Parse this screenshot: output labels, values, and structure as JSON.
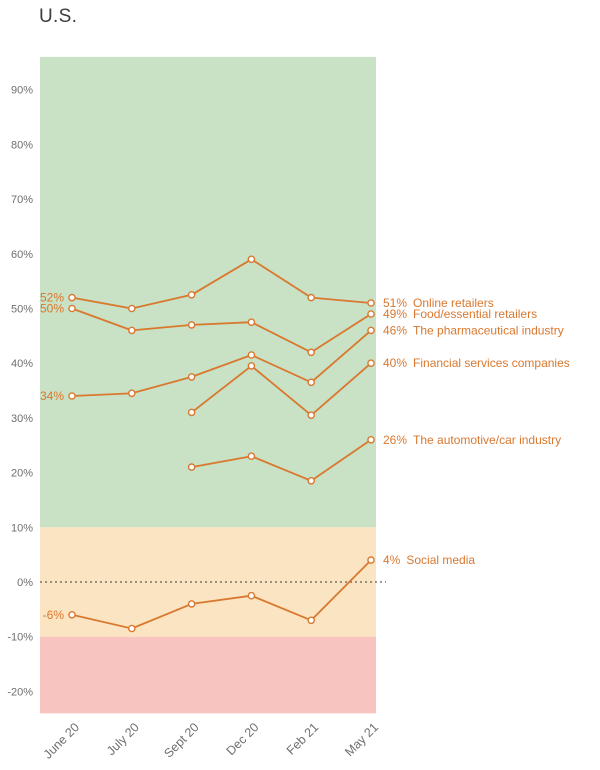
{
  "title": "U.S.",
  "colors": {
    "line": "#d9782f",
    "marker_fill": "#ffffff",
    "band_positive": "#c9e1c4",
    "band_neutral": "#fbe4c1",
    "band_negative": "#f7c4c0",
    "axis_text": "#6f6f6f",
    "title_text": "#3d3d3d",
    "zero_line": "#3a3a3a"
  },
  "chart_data": {
    "type": "line",
    "title": "U.S.",
    "x": [
      "June 20",
      "July 20",
      "Sept 20",
      "Dec 20",
      "Feb 21",
      "May 21"
    ],
    "ylabel": "",
    "xlabel": "",
    "ylim": [
      -24,
      96
    ],
    "yticks": [
      90,
      80,
      70,
      60,
      50,
      40,
      30,
      20,
      10,
      0,
      -10,
      -20
    ],
    "ytick_suffix": "%",
    "grid": false,
    "zero_line": 0,
    "bands": [
      {
        "from": 10,
        "to": 96,
        "color_key": "band_positive"
      },
      {
        "from": -10,
        "to": 10,
        "color_key": "band_neutral"
      },
      {
        "from": -24,
        "to": -10,
        "color_key": "band_negative"
      }
    ],
    "series": [
      {
        "name": "Online retailers",
        "values": [
          52,
          50,
          52.5,
          59,
          52,
          51
        ],
        "start_label": "52%",
        "end_label": "51%"
      },
      {
        "name": "Food/essential retailers",
        "values": [
          50,
          46,
          47,
          47.5,
          42,
          49
        ],
        "start_label": "50%",
        "end_label": "49%"
      },
      {
        "name": "The pharmaceutical industry",
        "values": [
          34,
          34.5,
          37.5,
          41.5,
          36.5,
          46
        ],
        "start_label": "34%",
        "end_label": "46%"
      },
      {
        "name": "Financial services companies",
        "values": [
          null,
          null,
          31,
          39.5,
          30.5,
          40
        ],
        "start_label": null,
        "end_label": "40%"
      },
      {
        "name": "The automotive/car industry",
        "values": [
          null,
          null,
          21,
          23,
          18.5,
          26
        ],
        "start_label": null,
        "end_label": "26%"
      },
      {
        "name": "Social media",
        "values": [
          -6,
          -8.5,
          -4,
          -2.5,
          -7,
          4
        ],
        "start_label": "-6%",
        "end_label": "4%"
      }
    ]
  }
}
